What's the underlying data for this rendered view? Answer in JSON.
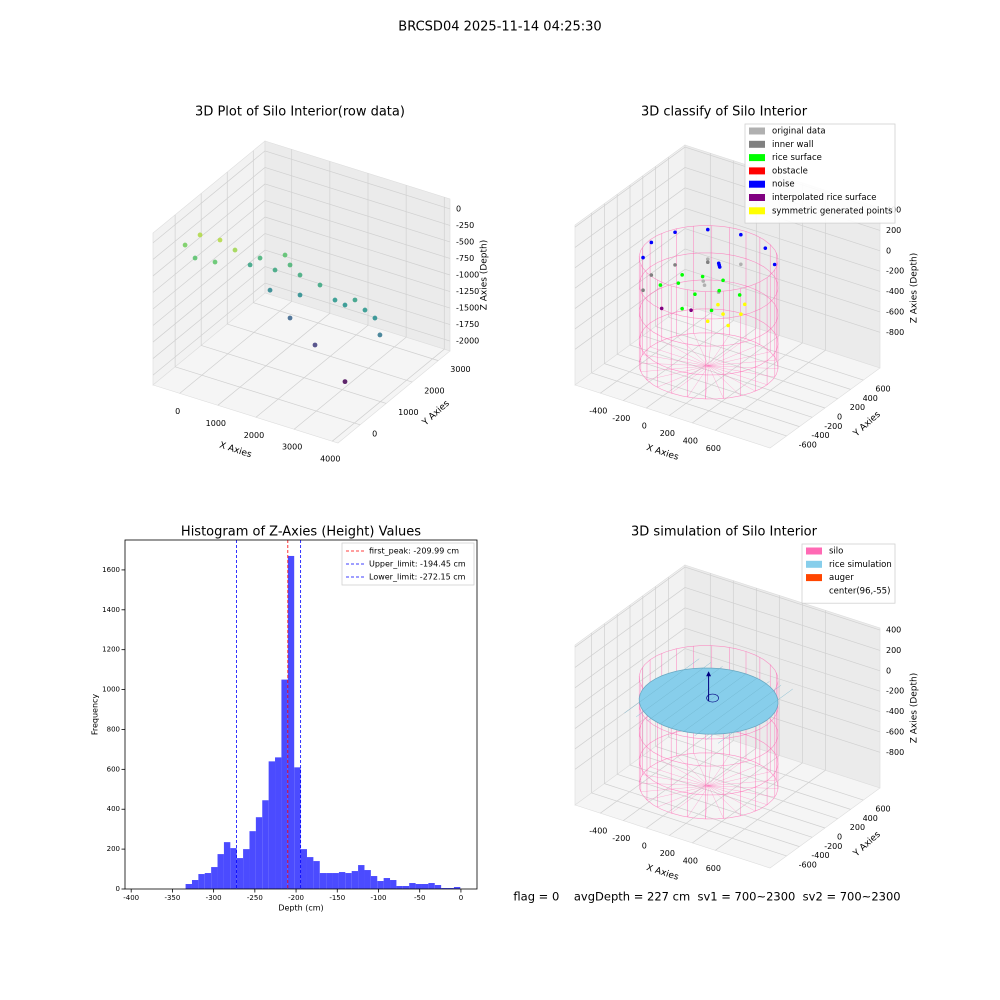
{
  "title": "BRCSD04 2025-11-14 04:25:30",
  "status": "flag = 0    avgDepth = 227 cm  sv1 = 700~2300  sv2 = 700~2300",
  "chart_data": [
    {
      "type": "scatter3d",
      "title": "3D Plot of Silo Interior(row data)",
      "xlabel": "X Axies",
      "ylabel": "Y Axies",
      "zlabel": "Z Axies (Depth)",
      "colormap": "viridis",
      "xlim": [
        -700,
        4150
      ],
      "ylim": [
        -850,
        3450
      ],
      "zlim": [
        -2150,
        150
      ],
      "xticks": [
        0,
        1000,
        2000,
        3000,
        4000
      ],
      "yticks": [
        0,
        1000,
        2000,
        3000
      ],
      "zticks": [
        0,
        -250,
        -500,
        -750,
        -1000,
        -1250,
        -1500,
        -1750,
        -2000
      ],
      "x": [
        -593,
        -200,
        323,
        716,
        192,
        -331,
        638,
        1031,
        1293,
        1424,
        1686,
        377,
        900,
        2210,
        2603,
        2865,
        3127,
        3389,
        1686,
        1424,
        2079,
        3781,
        3650,
        2865
      ],
      "y": [
        225,
        225,
        225,
        225,
        225,
        225,
        1300,
        1300,
        1300,
        1300,
        1300,
        1300,
        1300,
        1300,
        1300,
        1300,
        1300,
        1300,
        1300,
        1300,
        1300,
        1300,
        1300,
        1300
      ],
      "z": [
        -361,
        -137,
        -119,
        -200,
        -476,
        -510,
        -683,
        -793,
        -519,
        -646,
        -750,
        -834,
        -1122,
        -807,
        -963,
        -991,
        -867,
        -972,
        -1053,
        -1448,
        -1738,
        -1278,
        -1046,
        -2150
      ]
    },
    {
      "type": "scatter3d",
      "title": "3D classify of Silo Interior",
      "xlabel": "X Axies",
      "ylabel": "Y Axies",
      "zlabel": "Z Axies (Depth)",
      "xlim": [
        -620,
        1075
      ],
      "ylim": [
        -860,
        860
      ],
      "zlim": [
        -1150,
        420
      ],
      "xticks": [
        -400,
        -200,
        0,
        200,
        400,
        600
      ],
      "yticks": [
        -600,
        -400,
        -200,
        0,
        200,
        400,
        600
      ],
      "zticks": [
        400,
        200,
        0,
        -200,
        -400,
        -600,
        -800
      ],
      "series": [
        {
          "name": "original data",
          "color": "#b0b0b0",
          "x": [
            96,
            -154,
            0,
            -50,
            150
          ],
          "y": [
            445,
            378,
            50,
            120,
            0
          ],
          "z": [
            -300,
            -310,
            -360,
            -370,
            -350
          ]
        },
        {
          "name": "inner wall",
          "color": "#808080",
          "x": [
            -337,
            -404,
            -337,
            -154
          ],
          "y": [
            195,
            -55,
            -305,
            378
          ],
          "z": [
            -350,
            -360,
            -370,
            -340
          ]
        },
        {
          "name": "rice surface",
          "color": "#00ff00",
          "x": [
            0,
            -200,
            100,
            -100,
            200,
            -300,
            0,
            250,
            -250,
            50
          ],
          "y": [
            -100,
            0,
            100,
            200,
            -200,
            -100,
            -300,
            150,
            150,
            250
          ],
          "z": [
            -380,
            -390,
            -400,
            -380,
            -420,
            -400,
            -430,
            -410,
            -395,
            -385
          ]
        },
        {
          "name": "obstacle",
          "color": "#ff0000",
          "x": [],
          "y": [],
          "z": []
        },
        {
          "name": "noise",
          "color": "#0000ff",
          "x": [
            529,
            346,
            96,
            -154,
            -337,
            -404,
            -337,
            100,
            110,
            90
          ],
          "y": [
            195,
            378,
            445,
            378,
            195,
            -55,
            -305,
            100,
            90,
            110
          ],
          "z": [
            -30,
            -20,
            -10,
            -20,
            -30,
            -40,
            -50,
            -150,
            -160,
            -140
          ]
        },
        {
          "name": "interpolated rice surface",
          "color": "#800080",
          "x": [
            50,
            -150
          ],
          "y": [
            -250,
            -350
          ],
          "z": [
            -450,
            -460
          ]
        },
        {
          "name": "symmetric generated points",
          "color": "#ffff00",
          "x": [
            300,
            400,
            250,
            400,
            200,
            350
          ],
          "y": [
            -200,
            -100,
            -350,
            -300,
            -100,
            50
          ],
          "z": [
            -420,
            -430,
            -440,
            -450,
            -410,
            -420
          ]
        }
      ]
    },
    {
      "type": "histogram",
      "title": "Histogram of Z-Axies (Height) Values",
      "xlabel": "Depth (cm)",
      "ylabel": "Frequency",
      "color": "#4b4bff",
      "xlim": [
        -407.5,
        19.5
      ],
      "ylim": [
        0,
        1750
      ],
      "xticks": [
        -400,
        -350,
        -300,
        -250,
        -200,
        -150,
        -100,
        -50,
        0
      ],
      "yticks": [
        0,
        200,
        400,
        600,
        800,
        1000,
        1200,
        1400,
        1600
      ],
      "bins": [
        -334,
        -326.25,
        -318.5,
        -310.75,
        -303,
        -295.25,
        -287.5,
        -279.75,
        -272,
        -264.25,
        -256.5,
        -248.75,
        -241,
        -233.25,
        -225.5,
        -217.75,
        -210,
        -202.25,
        -194.5,
        -186.75,
        -179,
        -171.25,
        -163.5,
        -155.75,
        -148,
        -140.25,
        -132.5,
        -124.75,
        -117,
        -109.25,
        -101.5,
        -93.75,
        -86,
        -78.25,
        -70.5,
        -62.75,
        -55,
        -47.25,
        -39.5,
        -31.75,
        -24,
        -16.25,
        -8.5,
        -0.75
      ],
      "values": [
        25,
        45,
        75,
        80,
        110,
        175,
        235,
        205,
        155,
        200,
        290,
        360,
        445,
        640,
        660,
        1050,
        1670,
        610,
        200,
        160,
        140,
        80,
        80,
        80,
        85,
        80,
        90,
        120,
        95,
        65,
        40,
        55,
        45,
        15,
        15,
        30,
        25,
        25,
        30,
        20,
        5,
        5,
        10
      ],
      "vlines": [
        {
          "value": -209.99,
          "label": "first_peak: -209.99 cm",
          "color": "#ff0000"
        },
        {
          "value": -194.45,
          "label": "Upper_limit: -194.45 cm",
          "color": "#0000ff"
        },
        {
          "value": -272.15,
          "label": "Lower_limit: -272.15 cm",
          "color": "#0000ff"
        }
      ]
    },
    {
      "type": "surface3d",
      "title": "3D simulation of Silo Interior",
      "xlabel": "X Axies",
      "ylabel": "Y Axies",
      "zlabel": "Z Axies (Depth)",
      "xlim": [
        -620,
        1075
      ],
      "ylim": [
        -860,
        860
      ],
      "zlim": [
        -1150,
        420
      ],
      "xticks": [
        -400,
        -200,
        0,
        200,
        400,
        600
      ],
      "yticks": [
        -600,
        -400,
        -200,
        0,
        200,
        400,
        600
      ],
      "zticks": [
        400,
        200,
        0,
        -200,
        -400,
        -600,
        -800
      ],
      "series": [
        {
          "name": "silo",
          "color": "#ff69b4"
        },
        {
          "name": "rice simulation",
          "color": "#87ceeb"
        },
        {
          "name": "auger",
          "color": "#ff4500"
        },
        {
          "name": "center(96,-55)",
          "color": "#ffffff"
        }
      ]
    }
  ]
}
